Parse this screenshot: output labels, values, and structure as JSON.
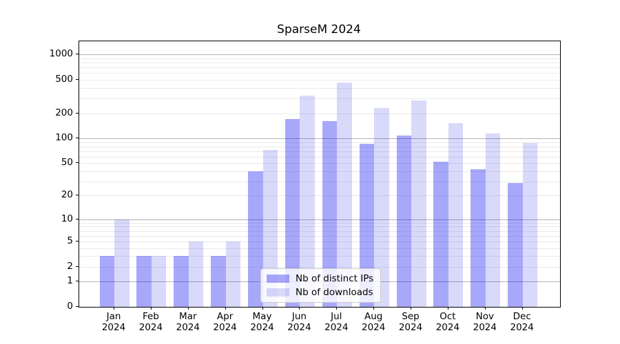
{
  "chart_data": {
    "type": "bar",
    "title": "SparseM 2024",
    "xlabel": "",
    "ylabel": "",
    "yscale": "log1p",
    "ylim": [
      0,
      1470
    ],
    "grid": "on",
    "legend_position": "lower-center",
    "yticks": [
      0,
      1,
      2,
      5,
      10,
      20,
      50,
      100,
      200,
      500,
      1000
    ],
    "y_major_gridlines": [
      1,
      10,
      100,
      1000
    ],
    "y_minor_gridlines": [
      2,
      3,
      4,
      5,
      6,
      7,
      8,
      9,
      20,
      30,
      40,
      50,
      60,
      70,
      80,
      90,
      200,
      300,
      400,
      500,
      600,
      700,
      800,
      900
    ],
    "categories": [
      {
        "month": "Jan",
        "year": "2024"
      },
      {
        "month": "Feb",
        "year": "2024"
      },
      {
        "month": "Mar",
        "year": "2024"
      },
      {
        "month": "Apr",
        "year": "2024"
      },
      {
        "month": "May",
        "year": "2024"
      },
      {
        "month": "Jun",
        "year": "2024"
      },
      {
        "month": "Jul",
        "year": "2024"
      },
      {
        "month": "Aug",
        "year": "2024"
      },
      {
        "month": "Sep",
        "year": "2024"
      },
      {
        "month": "Oct",
        "year": "2024"
      },
      {
        "month": "Nov",
        "year": "2024"
      },
      {
        "month": "Dec",
        "year": "2024"
      }
    ],
    "series": [
      {
        "name": "Nb of distinct IPs",
        "slug": "ips",
        "color": "rgba(0,0,240,0.34)",
        "values": [
          3,
          3,
          3,
          3,
          40,
          172,
          160,
          86,
          108,
          52,
          42,
          29
        ]
      },
      {
        "name": "Nb of downloads",
        "slug": "downloads",
        "color": "rgba(0,0,220,0.15)",
        "values": [
          10,
          3,
          5,
          5,
          73,
          325,
          468,
          230,
          287,
          153,
          114,
          87
        ]
      }
    ],
    "colors": {
      "grid_major": "#b3b3b3",
      "grid_minor": "#eaeaea",
      "spine": "#000000",
      "background": "#ffffff",
      "legend_border": "#cccccc"
    }
  }
}
